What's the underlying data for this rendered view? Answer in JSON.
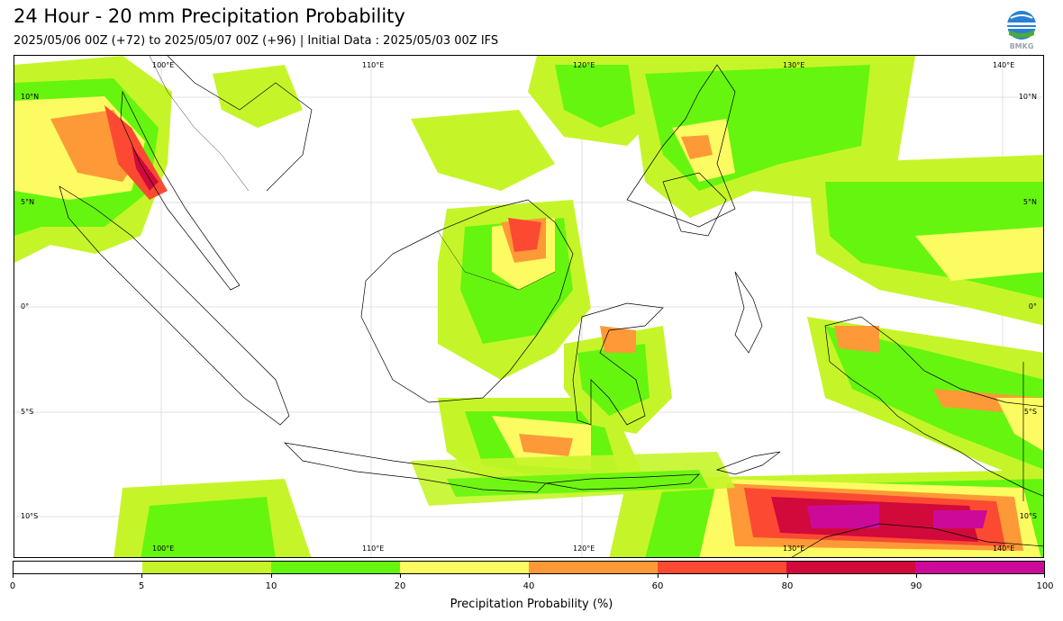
{
  "header": {
    "title": "24 Hour - 20 mm Precipitation Probability",
    "subtitle": "2025/05/06 00Z (+72) to 2025/05/07 00Z (+96) | Initial Data : 2025/05/03 00Z IFS",
    "logo_text": "BMKG"
  },
  "map": {
    "lon_labels": [
      "100°E",
      "110°E",
      "120°E",
      "130°E",
      "140°E"
    ],
    "lat_labels_left": [
      "10°N",
      "5°N",
      "0°",
      "5°S",
      "10°S"
    ],
    "lat_labels_right": [
      "10°N",
      "5°N",
      "0°",
      "5°S",
      "10°S"
    ],
    "grid": true,
    "lon_range": [
      95,
      144
    ],
    "lat_range": [
      -12,
      11.5
    ]
  },
  "colorbar": {
    "label": "Precipitation Probability (%)",
    "ticks": [
      "0",
      "5",
      "10",
      "20",
      "40",
      "60",
      "80",
      "90",
      "100"
    ],
    "colors": [
      "#ffffff",
      "#c5f529",
      "#66f50f",
      "#fdfb62",
      "#fd9a37",
      "#fc4a32",
      "#d10a3b",
      "#cc0a9a"
    ]
  }
}
